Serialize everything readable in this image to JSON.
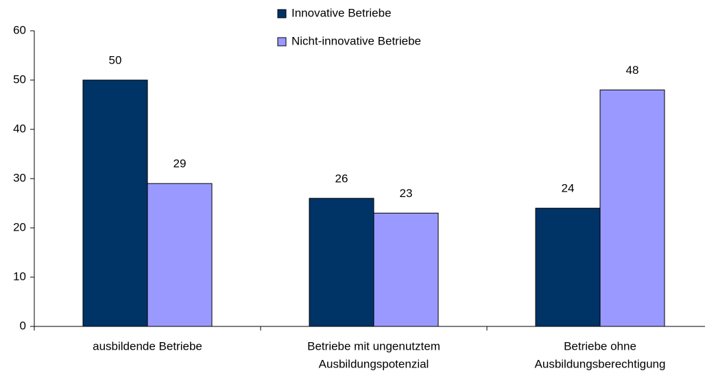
{
  "chart_data": {
    "type": "bar",
    "categories": [
      [
        "ausbildende Betriebe"
      ],
      [
        "Betriebe mit ungenutztem",
        "Ausbildungspotenzial"
      ],
      [
        "Betriebe ohne",
        "Ausbildungsberechtigung"
      ]
    ],
    "series": [
      {
        "name": "Innovative Betriebe",
        "color": "#003366",
        "values": [
          50,
          26,
          24
        ]
      },
      {
        "name": "Nicht-innovative Betriebe",
        "color": "#9999ff",
        "values": [
          29,
          23,
          48
        ]
      }
    ],
    "ylim": [
      0,
      60
    ],
    "yticks": [
      0,
      10,
      20,
      30,
      40,
      50,
      60
    ],
    "grid": false,
    "legend": "top"
  }
}
